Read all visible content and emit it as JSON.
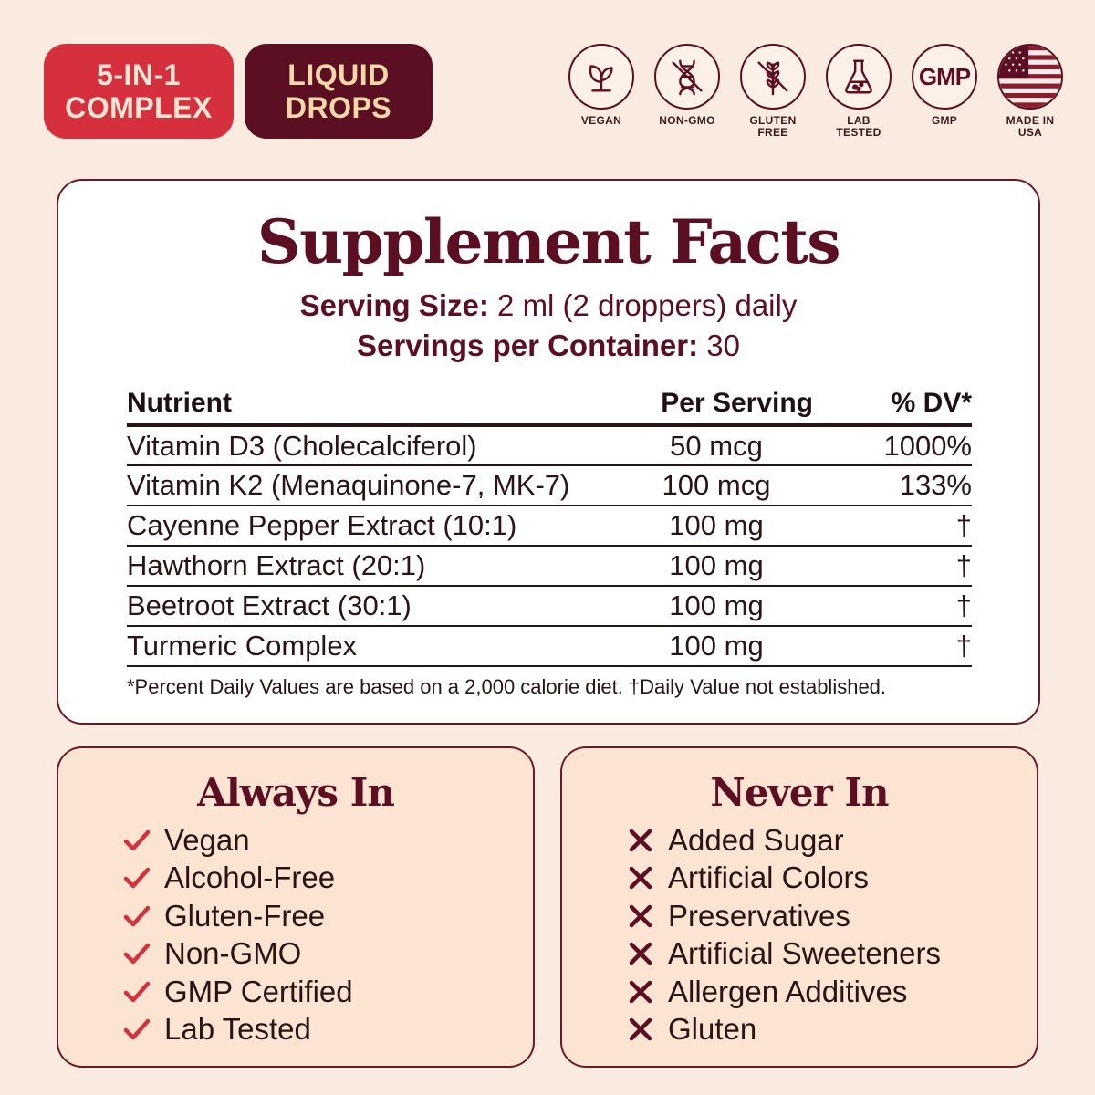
{
  "badges": [
    {
      "line1": "5-IN-1",
      "line2": "COMPLEX"
    },
    {
      "line1": "LIQUID",
      "line2": "DROPS"
    }
  ],
  "icons": [
    {
      "name": "leaf-icon",
      "label1": "VEGAN",
      "label2": ""
    },
    {
      "name": "dna-crossed-icon",
      "label1": "NON-GMO",
      "label2": ""
    },
    {
      "name": "wheat-crossed-icon",
      "label1": "GLUTEN",
      "label2": "FREE"
    },
    {
      "name": "flask-icon",
      "label1": "LAB",
      "label2": "TESTED"
    },
    {
      "name": "gmp-icon",
      "text": "GMP",
      "label1": "GMP",
      "label2": ""
    },
    {
      "name": "us-flag-icon",
      "label1": "MADE IN",
      "label2": "USA"
    }
  ],
  "facts": {
    "title": "Supplement Facts",
    "serving_size_label": "Serving Size:",
    "serving_size_value": " 2 ml (2 droppers) daily",
    "servings_label": "Servings per Container:",
    "servings_value": " 30",
    "headers": {
      "nutrient": "Nutrient",
      "per_serving": "Per Serving",
      "dv": "% DV*"
    },
    "rows": [
      {
        "nutrient": "Vitamin D3 (Cholecalciferol)",
        "amount": "50 mcg",
        "dv": "1000%"
      },
      {
        "nutrient": "Vitamin K2 (Menaquinone-7, MK-7)",
        "amount": "100 mcg",
        "dv": "133%"
      },
      {
        "nutrient": "Cayenne Pepper Extract (10:1)",
        "amount": "100 mg",
        "dv": "†"
      },
      {
        "nutrient": "Hawthorn Extract (20:1)",
        "amount": "100 mg",
        "dv": "†"
      },
      {
        "nutrient": "Beetroot Extract (30:1)",
        "amount": "100 mg",
        "dv": "†"
      },
      {
        "nutrient": "Turmeric Complex",
        "amount": "100 mg",
        "dv": "†"
      }
    ],
    "footnote": "*Percent Daily Values are based on a 2,000 calorie diet. †Daily Value not established."
  },
  "always_in": {
    "title": "Always In",
    "items": [
      "Vegan",
      "Alcohol-Free",
      "Gluten-Free",
      "Non-GMO",
      "GMP Certified",
      "Lab Tested"
    ]
  },
  "never_in": {
    "title": "Never In",
    "items": [
      "Added Sugar",
      "Artificial Colors",
      "Preservatives",
      "Artificial Sweeteners",
      "Allergen Additives",
      "Gluten"
    ]
  },
  "colors": {
    "accent_red": "#d62f3e",
    "accent_dark": "#5c0f22",
    "background": "#f9ebe0",
    "panel_light": "#fbe5d2"
  }
}
